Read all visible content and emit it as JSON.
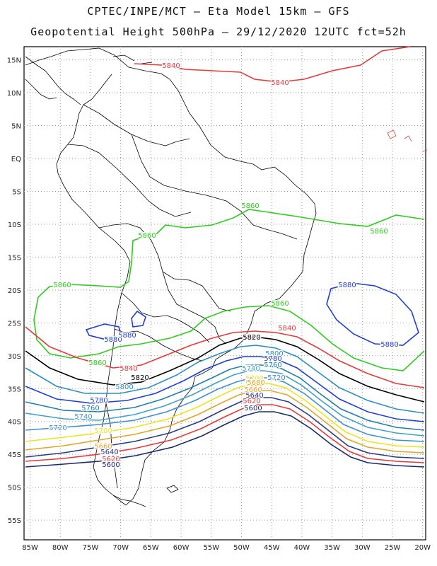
{
  "title_line1": "CPTEC/INPE/MCT –  Eta Model 15km – GFS",
  "title_line2": "Geopotential Height 500hPa – 29/12/2020 12UTC fct=52h",
  "map": {
    "lon_range": [
      -86,
      -19.5
    ],
    "lat_range": [
      -58,
      17
    ],
    "lat_labels": [
      "15N",
      "10N",
      "5N",
      "EQ",
      "5S",
      "10S",
      "15S",
      "20S",
      "25S",
      "30S",
      "35S",
      "40S",
      "45S",
      "50S",
      "55S"
    ],
    "lon_labels": [
      "85W",
      "80W",
      "75W",
      "70W",
      "65W",
      "60W",
      "55W",
      "50W",
      "45W",
      "40W",
      "35W",
      "30W",
      "25W",
      "20W"
    ],
    "grid": "dotted, every 5 degrees"
  },
  "contour_colors": {
    "5880": "#1f3fd6",
    "5860": "#2ecc1e",
    "5840": "#e8393a",
    "5820": "#000000",
    "5800": "#2d8fbf",
    "5780": "#1f3fd6",
    "5760": "#1f7fa8",
    "5740": "#3fa0c8",
    "5720": "#3f8fd0",
    "5700": "#f2e21c",
    "5680": "#e0a628",
    "5660": "#f0a030",
    "5640": "#2a3a8a",
    "5620": "#e8393a",
    "5600": "#1a2a6a"
  },
  "contour_labels": [
    {
      "text": "5840",
      "color": "5840"
    },
    {
      "text": "5840",
      "color": "5840"
    },
    {
      "text": "5860",
      "color": "5860"
    },
    {
      "text": "5860",
      "color": "5860"
    },
    {
      "text": "5860",
      "color": "5860"
    },
    {
      "text": "5860",
      "color": "5860"
    },
    {
      "text": "5860",
      "color": "5860"
    },
    {
      "text": "5860",
      "color": "5860"
    },
    {
      "text": "5880",
      "color": "5880"
    },
    {
      "text": "5880",
      "color": "5880"
    },
    {
      "text": "5880",
      "color": "5880"
    },
    {
      "text": "5880",
      "color": "5880"
    },
    {
      "text": "5840",
      "color": "5840"
    },
    {
      "text": "5820",
      "color": "5820"
    },
    {
      "text": "5840",
      "color": "5840"
    },
    {
      "text": "5820",
      "color": "5820"
    },
    {
      "text": "5800",
      "color": "5800"
    },
    {
      "text": "5800",
      "color": "5800"
    },
    {
      "text": "5780",
      "color": "5780"
    },
    {
      "text": "5780",
      "color": "5780"
    },
    {
      "text": "5760",
      "color": "5760"
    },
    {
      "text": "5760",
      "color": "5760"
    },
    {
      "text": "5740",
      "color": "5740"
    },
    {
      "text": "5740",
      "color": "5740"
    },
    {
      "text": "5720",
      "color": "5720"
    },
    {
      "text": "5720",
      "color": "5720"
    },
    {
      "text": "5700",
      "color": "5700"
    },
    {
      "text": "5700",
      "color": "5700"
    },
    {
      "text": "5680",
      "color": "5680"
    },
    {
      "text": "5660",
      "color": "5660"
    },
    {
      "text": "5640",
      "color": "5640"
    },
    {
      "text": "5620",
      "color": "5620"
    },
    {
      "text": "5600",
      "color": "5600"
    },
    {
      "text": "5660",
      "color": "5660"
    },
    {
      "text": "5640",
      "color": "5640"
    },
    {
      "text": "5620",
      "color": "5620"
    },
    {
      "text": "5600",
      "color": "5600"
    },
    {
      "text": "5680",
      "color": "5680"
    }
  ]
}
